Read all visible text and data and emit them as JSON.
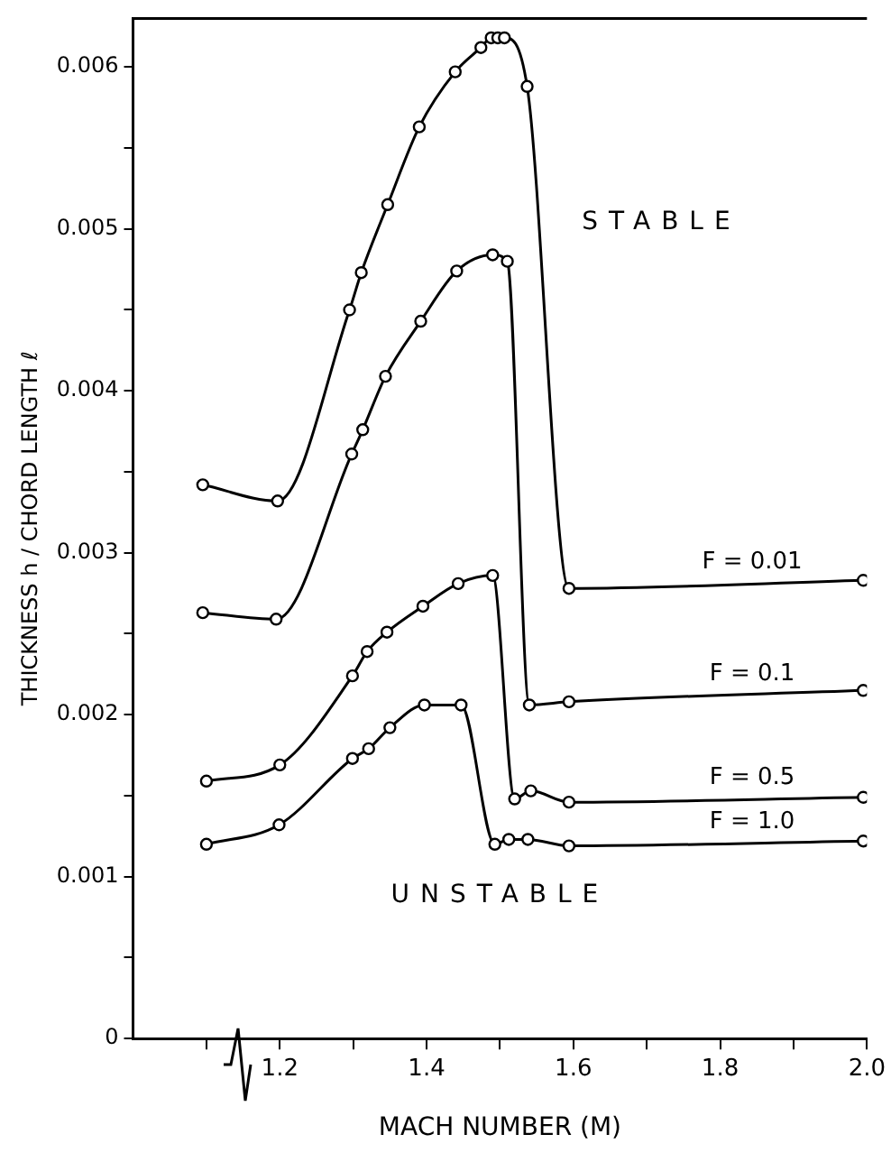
{
  "chart_data": {
    "type": "line",
    "xlabel": "MACH NUMBER (M)",
    "ylabel": "THICKNESS h / CHORD LENGTH ℓ",
    "xlim": [
      1.0,
      2.0
    ],
    "xticks": [
      {
        "value": 1.1,
        "label": null
      },
      1.2,
      {
        "value": 1.3,
        "label": null
      },
      1.4,
      {
        "value": 1.5,
        "label": null
      },
      1.6,
      {
        "value": 1.7,
        "label": null
      },
      1.8,
      {
        "value": 1.9,
        "label": null
      },
      {
        "value": 2,
        "label": "2.0"
      }
    ],
    "ylim": [
      0,
      0.0063
    ],
    "yticks": [
      0,
      {
        "value": 0.0005,
        "label": null
      },
      0.001,
      {
        "value": 0.0015,
        "label": null
      },
      0.002,
      {
        "value": 0.0025,
        "label": null
      },
      0.003,
      {
        "value": 0.0035,
        "label": null
      },
      0.004,
      {
        "value": 0.0045,
        "label": null
      },
      0.005,
      {
        "value": 0.0055,
        "label": null
      },
      0.006
    ],
    "grid": false,
    "legend": false,
    "marker": "circle",
    "line_style": "solid",
    "annotations": [
      "STABLE",
      "UNSTABLE"
    ],
    "series": [
      {
        "name": "F = 0.01",
        "color": "#000000",
        "x": [
          1.095,
          1.197,
          1.295,
          1.311,
          1.347,
          1.39,
          1.439,
          1.474,
          1.488,
          1.497,
          1.506,
          1.537,
          1.594,
          1.995
        ],
        "values": [
          0.00342,
          0.00332,
          0.0045,
          0.00473,
          0.00515,
          0.00563,
          0.00597,
          0.00612,
          0.00618,
          0.00618,
          0.00618,
          0.00588,
          0.00278,
          0.00283
        ]
      },
      {
        "name": "F = 0.1",
        "color": "#000000",
        "x": [
          1.095,
          1.195,
          1.298,
          1.313,
          1.344,
          1.392,
          1.441,
          1.49,
          1.51,
          1.54,
          1.594,
          1.995
        ],
        "values": [
          0.00263,
          0.00259,
          0.00361,
          0.00376,
          0.00409,
          0.00443,
          0.00474,
          0.00484,
          0.0048,
          0.00206,
          0.00208,
          0.00215
        ]
      },
      {
        "name": "F = 0.5",
        "color": "#000000",
        "x": [
          1.1,
          1.2,
          1.299,
          1.319,
          1.346,
          1.395,
          1.443,
          1.49,
          1.52,
          1.542,
          1.594,
          1.995
        ],
        "values": [
          0.00159,
          0.00169,
          0.00224,
          0.00239,
          0.00251,
          0.00267,
          0.00281,
          0.00286,
          0.00148,
          0.00153,
          0.00146,
          0.00149
        ]
      },
      {
        "name": "F = 1.0",
        "color": "#000000",
        "x": [
          1.1,
          1.199,
          1.299,
          1.321,
          1.35,
          1.397,
          1.447,
          1.493,
          1.512,
          1.538,
          1.594,
          1.995
        ],
        "values": [
          0.0012,
          0.00132,
          0.00173,
          0.00179,
          0.00192,
          0.00206,
          0.00206,
          0.0012,
          0.00123,
          0.00123,
          0.00119,
          0.00122
        ]
      }
    ]
  }
}
